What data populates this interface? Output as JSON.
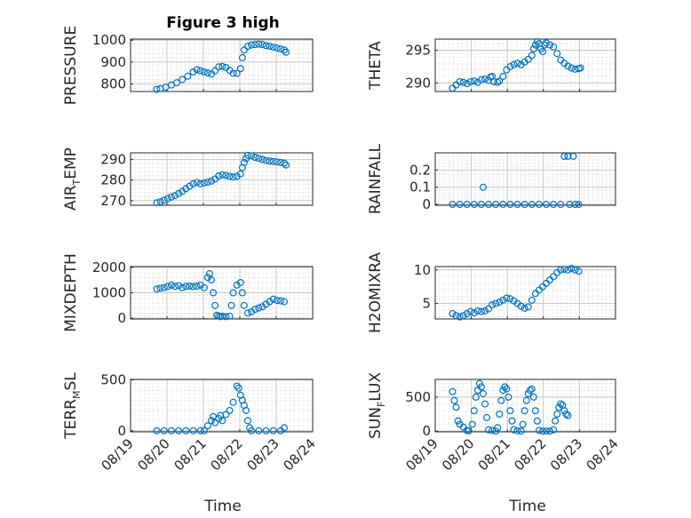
{
  "figure": {
    "title": "Figure 3 high",
    "xlabel_left": "Time",
    "xlabel_right": "Time",
    "x_ticks": [
      "08/19",
      "08/20",
      "08/21",
      "08/22",
      "08/23",
      "08/24"
    ],
    "marker_color": "#0072BD",
    "grid_color": "#D9D9D9"
  },
  "chart_data": [
    {
      "type": "scatter",
      "name": "pressure",
      "ylabel_main": "PRESSURE",
      "ylabel_sub": "",
      "xlim": [
        0,
        5
      ],
      "ylim": [
        765,
        1005
      ],
      "yticks": [
        800,
        900,
        1000
      ],
      "points": [
        [
          0.0,
          775
        ],
        [
          0.1,
          778
        ],
        [
          0.25,
          785
        ],
        [
          0.4,
          795
        ],
        [
          0.55,
          805
        ],
        [
          0.7,
          820
        ],
        [
          0.85,
          835
        ],
        [
          1.0,
          855
        ],
        [
          1.1,
          865
        ],
        [
          1.2,
          860
        ],
        [
          1.3,
          855
        ],
        [
          1.4,
          850
        ],
        [
          1.5,
          845
        ],
        [
          1.6,
          860
        ],
        [
          1.7,
          878
        ],
        [
          1.8,
          880
        ],
        [
          1.9,
          875
        ],
        [
          2.0,
          862
        ],
        [
          2.1,
          848
        ],
        [
          2.2,
          848
        ],
        [
          2.3,
          870
        ],
        [
          2.35,
          920
        ],
        [
          2.4,
          955
        ],
        [
          2.5,
          972
        ],
        [
          2.6,
          978
        ],
        [
          2.7,
          980
        ],
        [
          2.8,
          982
        ],
        [
          2.9,
          980
        ],
        [
          3.0,
          975
        ],
        [
          3.1,
          972
        ],
        [
          3.2,
          968
        ],
        [
          3.3,
          964
        ],
        [
          3.4,
          960
        ],
        [
          3.5,
          955
        ],
        [
          3.55,
          945
        ]
      ]
    },
    {
      "type": "scatter",
      "name": "theta",
      "ylabel_main": "THETA",
      "ylabel_sub": "",
      "xlim": [
        0,
        5
      ],
      "ylim": [
        288.7,
        296.7
      ],
      "yticks": [
        290,
        295
      ],
      "points": [
        [
          0.0,
          289.2
        ],
        [
          0.1,
          289.7
        ],
        [
          0.2,
          290.2
        ],
        [
          0.3,
          290.1
        ],
        [
          0.4,
          289.9
        ],
        [
          0.5,
          290.2
        ],
        [
          0.6,
          290.3
        ],
        [
          0.7,
          290.1
        ],
        [
          0.8,
          290.5
        ],
        [
          0.9,
          290.6
        ],
        [
          1.0,
          290.4
        ],
        [
          1.05,
          290.9
        ],
        [
          1.1,
          291.0
        ],
        [
          1.15,
          290.2
        ],
        [
          1.25,
          290.1
        ],
        [
          1.3,
          290.3
        ],
        [
          1.4,
          291.0
        ],
        [
          1.5,
          292.0
        ],
        [
          1.6,
          292.5
        ],
        [
          1.7,
          292.8
        ],
        [
          1.8,
          293.0
        ],
        [
          1.9,
          292.8
        ],
        [
          2.0,
          293.2
        ],
        [
          2.1,
          293.6
        ],
        [
          2.2,
          294.2
        ],
        [
          2.25,
          295.2
        ],
        [
          2.3,
          295.8
        ],
        [
          2.35,
          296.3
        ],
        [
          2.4,
          296.0
        ],
        [
          2.45,
          295.2
        ],
        [
          2.5,
          294.8
        ],
        [
          2.55,
          295.8
        ],
        [
          2.6,
          296.1
        ],
        [
          2.7,
          295.8
        ],
        [
          2.8,
          295.5
        ],
        [
          2.9,
          294.5
        ],
        [
          3.0,
          293.5
        ],
        [
          3.1,
          293.0
        ],
        [
          3.2,
          292.6
        ],
        [
          3.3,
          292.3
        ],
        [
          3.4,
          292.1
        ],
        [
          3.5,
          292.2
        ],
        [
          3.55,
          292.3
        ]
      ]
    },
    {
      "type": "scatter",
      "name": "air_temp",
      "ylabel_main": "AIR",
      "ylabel_sub": "T",
      "ylabel_tail": "EMP",
      "xlim": [
        0,
        5
      ],
      "ylim": [
        267.8,
        293.2
      ],
      "yticks": [
        270,
        280,
        290
      ],
      "points": [
        [
          0.0,
          269.0
        ],
        [
          0.1,
          269.5
        ],
        [
          0.2,
          270.2
        ],
        [
          0.3,
          271.0
        ],
        [
          0.4,
          271.8
        ],
        [
          0.5,
          272.5
        ],
        [
          0.6,
          273.5
        ],
        [
          0.7,
          274.5
        ],
        [
          0.8,
          275.8
        ],
        [
          0.9,
          277.0
        ],
        [
          1.0,
          278.2
        ],
        [
          1.1,
          278.8
        ],
        [
          1.2,
          278.2
        ],
        [
          1.3,
          278.6
        ],
        [
          1.4,
          279.0
        ],
        [
          1.5,
          279.5
        ],
        [
          1.6,
          280.5
        ],
        [
          1.7,
          282.0
        ],
        [
          1.8,
          282.5
        ],
        [
          1.9,
          282.3
        ],
        [
          2.0,
          281.8
        ],
        [
          2.1,
          281.5
        ],
        [
          2.2,
          281.8
        ],
        [
          2.3,
          283.0
        ],
        [
          2.35,
          286.0
        ],
        [
          2.4,
          288.5
        ],
        [
          2.45,
          290.5
        ],
        [
          2.5,
          292.0
        ],
        [
          2.6,
          291.8
        ],
        [
          2.7,
          291.0
        ],
        [
          2.8,
          290.5
        ],
        [
          2.9,
          290.0
        ],
        [
          3.0,
          289.5
        ],
        [
          3.1,
          289.2
        ],
        [
          3.2,
          289.0
        ],
        [
          3.3,
          288.8
        ],
        [
          3.4,
          288.5
        ],
        [
          3.5,
          288.2
        ],
        [
          3.55,
          287.3
        ]
      ]
    },
    {
      "type": "scatter",
      "name": "rainfall",
      "ylabel_main": "RAINFALL",
      "ylabel_sub": "",
      "xlim": [
        0,
        5
      ],
      "ylim": [
        -0.005,
        0.3
      ],
      "yticks": [
        0,
        0.1,
        0.2
      ],
      "points": [
        [
          0.0,
          0
        ],
        [
          0.2,
          0
        ],
        [
          0.4,
          0
        ],
        [
          0.6,
          0
        ],
        [
          0.8,
          0
        ],
        [
          0.85,
          0.1
        ],
        [
          1.0,
          0
        ],
        [
          1.2,
          0
        ],
        [
          1.4,
          0
        ],
        [
          1.6,
          0
        ],
        [
          1.8,
          0
        ],
        [
          2.0,
          0
        ],
        [
          2.2,
          0
        ],
        [
          2.4,
          0
        ],
        [
          2.6,
          0
        ],
        [
          2.8,
          0
        ],
        [
          3.0,
          0
        ],
        [
          3.1,
          0.28
        ],
        [
          3.2,
          0.28
        ],
        [
          3.25,
          0
        ],
        [
          3.35,
          0.28
        ],
        [
          3.4,
          0
        ],
        [
          3.5,
          0
        ]
      ]
    },
    {
      "type": "scatter",
      "name": "mixdepth",
      "ylabel_main": "MIXDEPTH",
      "ylabel_sub": "",
      "xlim": [
        0,
        5
      ],
      "ylim": [
        -30,
        2030
      ],
      "yticks": [
        0,
        1000,
        2000
      ],
      "points": [
        [
          0.0,
          1150
        ],
        [
          0.1,
          1180
        ],
        [
          0.2,
          1200
        ],
        [
          0.3,
          1250
        ],
        [
          0.4,
          1300
        ],
        [
          0.5,
          1250
        ],
        [
          0.6,
          1280
        ],
        [
          0.7,
          1200
        ],
        [
          0.8,
          1250
        ],
        [
          0.9,
          1260
        ],
        [
          1.0,
          1240
        ],
        [
          1.1,
          1260
        ],
        [
          1.2,
          1300
        ],
        [
          1.3,
          1200
        ],
        [
          1.4,
          1600
        ],
        [
          1.45,
          1750
        ],
        [
          1.5,
          1500
        ],
        [
          1.55,
          1000
        ],
        [
          1.6,
          500
        ],
        [
          1.65,
          120
        ],
        [
          1.7,
          80
        ],
        [
          1.75,
          60
        ],
        [
          1.8,
          80
        ],
        [
          1.9,
          60
        ],
        [
          2.0,
          80
        ],
        [
          2.05,
          500
        ],
        [
          2.1,
          1000
        ],
        [
          2.2,
          1300
        ],
        [
          2.3,
          1400
        ],
        [
          2.35,
          1000
        ],
        [
          2.4,
          500
        ],
        [
          2.5,
          200
        ],
        [
          2.6,
          250
        ],
        [
          2.7,
          350
        ],
        [
          2.8,
          400
        ],
        [
          2.9,
          450
        ],
        [
          3.0,
          550
        ],
        [
          3.1,
          650
        ],
        [
          3.2,
          750
        ],
        [
          3.3,
          700
        ],
        [
          3.4,
          680
        ],
        [
          3.5,
          650
        ]
      ]
    },
    {
      "type": "scatter",
      "name": "h2omixra",
      "ylabel_main": "H2OMIXRA",
      "ylabel_sub": "",
      "xlim": [
        0,
        5
      ],
      "ylim": [
        2.7,
        10.5
      ],
      "yticks": [
        5,
        10
      ],
      "points": [
        [
          0.0,
          3.5
        ],
        [
          0.1,
          3.2
        ],
        [
          0.2,
          3.0
        ],
        [
          0.3,
          3.2
        ],
        [
          0.4,
          3.5
        ],
        [
          0.5,
          3.8
        ],
        [
          0.6,
          3.6
        ],
        [
          0.7,
          3.9
        ],
        [
          0.8,
          3.8
        ],
        [
          0.9,
          3.9
        ],
        [
          1.0,
          4.2
        ],
        [
          1.1,
          4.8
        ],
        [
          1.2,
          5.0
        ],
        [
          1.3,
          5.2
        ],
        [
          1.4,
          5.5
        ],
        [
          1.5,
          5.8
        ],
        [
          1.6,
          5.7
        ],
        [
          1.7,
          5.4
        ],
        [
          1.8,
          5.0
        ],
        [
          1.9,
          4.6
        ],
        [
          2.0,
          4.3
        ],
        [
          2.1,
          4.5
        ],
        [
          2.2,
          5.5
        ],
        [
          2.3,
          6.5
        ],
        [
          2.4,
          7.0
        ],
        [
          2.5,
          7.5
        ],
        [
          2.6,
          8.0
        ],
        [
          2.7,
          8.5
        ],
        [
          2.8,
          9.0
        ],
        [
          2.9,
          9.6
        ],
        [
          3.0,
          10.0
        ],
        [
          3.1,
          10.1
        ],
        [
          3.2,
          10.0
        ],
        [
          3.3,
          10.2
        ],
        [
          3.4,
          10.0
        ],
        [
          3.5,
          9.8
        ]
      ]
    },
    {
      "type": "scatter",
      "name": "terr_msl",
      "ylabel_main": "TERR",
      "ylabel_sub": "M",
      "ylabel_tail": "SL",
      "xlim": [
        0,
        5
      ],
      "ylim": [
        -10,
        505
      ],
      "yticks": [
        0,
        500
      ],
      "points": [
        [
          0.0,
          0
        ],
        [
          0.2,
          0
        ],
        [
          0.4,
          0
        ],
        [
          0.6,
          0
        ],
        [
          0.8,
          0
        ],
        [
          1.0,
          0
        ],
        [
          1.2,
          0
        ],
        [
          1.3,
          0
        ],
        [
          1.4,
          50
        ],
        [
          1.5,
          100
        ],
        [
          1.55,
          140
        ],
        [
          1.6,
          80
        ],
        [
          1.7,
          120
        ],
        [
          1.75,
          150
        ],
        [
          1.8,
          100
        ],
        [
          1.9,
          160
        ],
        [
          2.0,
          200
        ],
        [
          2.1,
          280
        ],
        [
          2.2,
          440
        ],
        [
          2.25,
          420
        ],
        [
          2.3,
          350
        ],
        [
          2.35,
          300
        ],
        [
          2.4,
          250
        ],
        [
          2.45,
          200
        ],
        [
          2.5,
          100
        ],
        [
          2.55,
          30
        ],
        [
          2.6,
          0
        ],
        [
          2.8,
          0
        ],
        [
          3.0,
          0
        ],
        [
          3.2,
          0
        ],
        [
          3.4,
          0
        ],
        [
          3.5,
          30
        ]
      ]
    },
    {
      "type": "scatter",
      "name": "sun_flux",
      "ylabel_main": "SUN",
      "ylabel_sub": "F",
      "ylabel_tail": "LUX",
      "xlim": [
        0,
        5
      ],
      "ylim": [
        -10,
        760
      ],
      "yticks": [
        0,
        500
      ],
      "points": [
        [
          0.0,
          580
        ],
        [
          0.05,
          450
        ],
        [
          0.1,
          350
        ],
        [
          0.15,
          150
        ],
        [
          0.2,
          100
        ],
        [
          0.3,
          60
        ],
        [
          0.4,
          10
        ],
        [
          0.45,
          5
        ],
        [
          0.55,
          100
        ],
        [
          0.6,
          300
        ],
        [
          0.65,
          500
        ],
        [
          0.7,
          600
        ],
        [
          0.75,
          700
        ],
        [
          0.8,
          650
        ],
        [
          0.85,
          550
        ],
        [
          0.9,
          400
        ],
        [
          0.95,
          200
        ],
        [
          1.0,
          20
        ],
        [
          1.1,
          10
        ],
        [
          1.2,
          0
        ],
        [
          1.25,
          50
        ],
        [
          1.3,
          250
        ],
        [
          1.35,
          450
        ],
        [
          1.4,
          600
        ],
        [
          1.45,
          650
        ],
        [
          1.5,
          620
        ],
        [
          1.55,
          500
        ],
        [
          1.6,
          300
        ],
        [
          1.65,
          150
        ],
        [
          1.7,
          20
        ],
        [
          1.8,
          5
        ],
        [
          1.9,
          0
        ],
        [
          1.95,
          100
        ],
        [
          2.0,
          300
        ],
        [
          2.05,
          450
        ],
        [
          2.1,
          550
        ],
        [
          2.15,
          600
        ],
        [
          2.2,
          620
        ],
        [
          2.25,
          500
        ],
        [
          2.3,
          300
        ],
        [
          2.35,
          150
        ],
        [
          2.4,
          10
        ],
        [
          2.5,
          0
        ],
        [
          2.6,
          0
        ],
        [
          2.7,
          0
        ],
        [
          2.8,
          20
        ],
        [
          2.85,
          150
        ],
        [
          2.9,
          250
        ],
        [
          2.95,
          350
        ],
        [
          3.0,
          400
        ],
        [
          3.05,
          380
        ],
        [
          3.1,
          300
        ],
        [
          3.15,
          250
        ],
        [
          3.2,
          230
        ]
      ]
    }
  ]
}
